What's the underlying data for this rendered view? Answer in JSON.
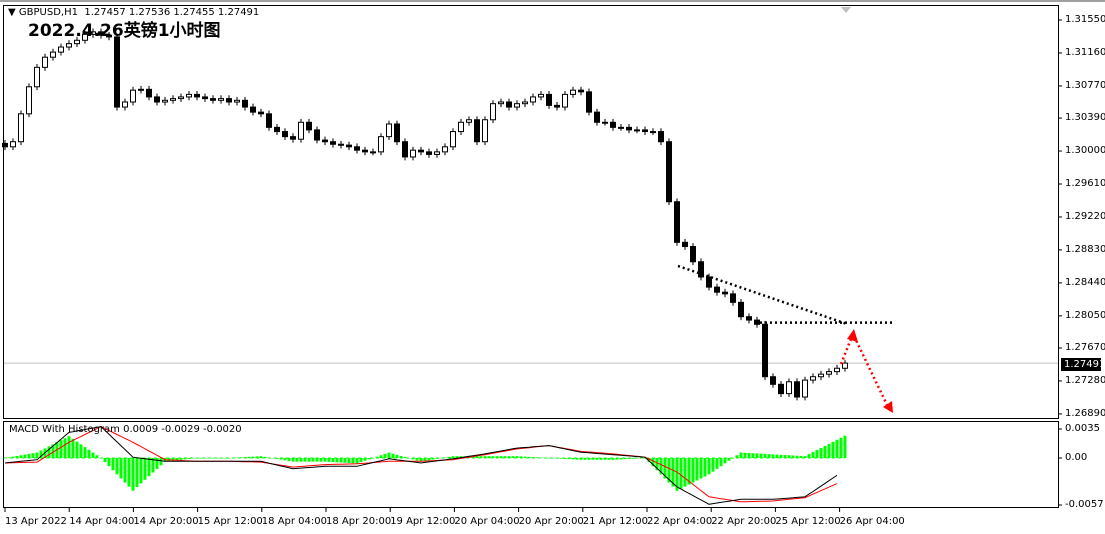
{
  "header": {
    "menu_icon": "triangle-down-icon",
    "symbol": "GBPUSD,H1",
    "ohlc": "1.27457 1.27536 1.27455 1.27491",
    "title": "2022.4.26英镑1小时图"
  },
  "macd": {
    "label": "MACD With Histogram 0.0009 -0.0029 -0.0020"
  },
  "colors": {
    "up_body": "#ffffff",
    "down_body": "#000000",
    "macd": "#000000",
    "signal": "#ff0000",
    "histogram": "#00ff00",
    "annotation_trend": "#000000",
    "annotation_arrow": "#ff0000",
    "bid_line": "#c0c0c0"
  },
  "chart_data": {
    "type": "candlestick",
    "symbol": "GBPUSD",
    "timeframe": "H1",
    "price_axis": {
      "ticks": [
        "1.31550",
        "1.31160",
        "1.30770",
        "1.30390",
        "1.30000",
        "1.29610",
        "1.29220",
        "1.28830",
        "1.28440",
        "1.28050",
        "1.27670",
        "1.27280",
        "1.26890"
      ],
      "range": [
        1.2689,
        1.3155
      ]
    },
    "bid": "1.27491",
    "time_axis": {
      "ticks": [
        "13 Apr 2022",
        "14 Apr 04:00",
        "14 Apr 20:00",
        "15 Apr 12:00",
        "18 Apr 04:00",
        "18 Apr 20:00",
        "19 Apr 12:00",
        "20 Apr 04:00",
        "20 Apr 20:00",
        "21 Apr 12:00",
        "22 Apr 04:00",
        "22 Apr 20:00",
        "25 Apr 12:00",
        "26 Apr 04:00"
      ]
    },
    "closes_approx": [
      1.3005,
      1.3011,
      1.3044,
      1.3076,
      1.3099,
      1.3111,
      1.3117,
      1.3123,
      1.3127,
      1.3131,
      1.3138,
      1.3141,
      1.3137,
      1.3135,
      1.3052,
      1.3058,
      1.3072,
      1.3073,
      1.3064,
      1.3058,
      1.306,
      1.3062,
      1.3064,
      1.3067,
      1.3064,
      1.3062,
      1.306,
      1.3062,
      1.3058,
      1.306,
      1.3052,
      1.3046,
      1.3044,
      1.3028,
      1.3023,
      1.3017,
      1.3014,
      1.3034,
      1.3025,
      1.3013,
      1.3011,
      1.3008,
      1.3007,
      1.3005,
      1.3001,
      1.2999,
      1.2999,
      1.3017,
      1.3032,
      1.3011,
      1.2993,
      1.3001,
      1.2999,
      1.2996,
      1.2999,
      1.3005,
      1.3023,
      1.3034,
      1.3037,
      1.3011,
      1.3037,
      1.3056,
      1.3058,
      1.3052,
      1.3056,
      1.3058,
      1.3064,
      1.3067,
      1.3054,
      1.3052,
      1.3067,
      1.3072,
      1.307,
      1.3046,
      1.3034,
      1.3034,
      1.3028,
      1.3028,
      1.3025,
      1.3025,
      1.3023,
      1.3023,
      1.3011,
      1.294,
      1.2892,
      1.2887,
      1.2869,
      1.2851,
      1.2839,
      1.2833,
      1.2831,
      1.2821,
      1.2804,
      1.28,
      1.2795,
      1.2733,
      1.2724,
      1.2713,
      1.2727,
      1.2709,
      1.2729,
      1.2733,
      1.2736,
      1.2739,
      1.2743,
      1.27491
    ],
    "macd_axis": {
      "ticks": [
        "0.0035",
        "0.00",
        "-0.0057"
      ],
      "range": [
        -0.0057,
        0.0035
      ]
    },
    "macd_main_approx": [
      -0.0006,
      -0.0002,
      0.0031,
      0.0038,
      0.0001,
      -0.0004,
      -0.0004,
      -0.0004,
      -0.0004,
      -0.0013,
      -0.001,
      -0.001,
      -0.0001,
      -0.0006,
      -0.0001,
      0.0005,
      0.0012,
      0.0015,
      0.0007,
      0.0004,
      0.0001,
      -0.0035,
      -0.0056,
      -0.005,
      -0.005,
      -0.0047,
      -0.0021
    ],
    "macd_signal_approx": [
      -0.0006,
      -0.0005,
      0.0019,
      0.0038,
      0.0019,
      -0.0002,
      -0.0004,
      -0.0004,
      -0.0005,
      -0.0011,
      -0.0008,
      -0.0007,
      -0.0004,
      -0.0004,
      -0.0002,
      0.0004,
      0.0011,
      0.0015,
      0.0008,
      0.0005,
      0.0001,
      -0.0017,
      -0.0047,
      -0.0053,
      -0.0052,
      -0.0048,
      -0.0031
    ],
    "annotations": {
      "trendline_prices": [
        1.2864,
        1.2795
      ],
      "horizontal_level": 1.2797,
      "projected_arrow": "up to ~1.2800 then down"
    }
  }
}
